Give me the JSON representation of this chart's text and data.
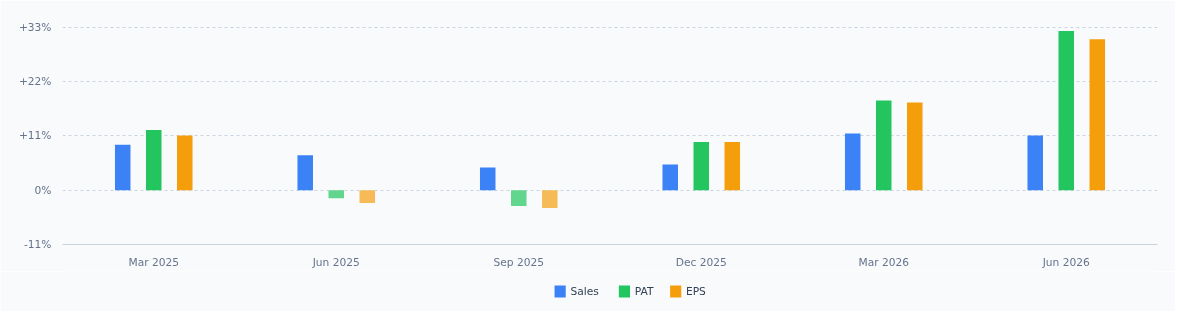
{
  "chart_data": {
    "type": "bar",
    "categories": [
      "Mar 2025",
      "Jun 2025",
      "Sep 2025",
      "Dec 2025",
      "Mar 2026",
      "Jun 2026"
    ],
    "series": [
      {
        "name": "Sales",
        "color": "#3b82f6",
        "colors": [
          "#3b82f6",
          "#3b82f6",
          "#3b82f6",
          "#3b82f6",
          "#3b82f6",
          "#3b82f6"
        ],
        "values": [
          9.2,
          7.1,
          4.6,
          5.2,
          11.5,
          11.1
        ]
      },
      {
        "name": "PAT",
        "color": "#22c55e",
        "colors": [
          "#22c55e",
          "#63d68d",
          "#63d68d",
          "#22c55e",
          "#22c55e",
          "#22c55e"
        ],
        "values": [
          12.2,
          -1.6,
          -3.2,
          9.8,
          18.2,
          32.3
        ]
      },
      {
        "name": "EPS",
        "color": "#f59e0b",
        "colors": [
          "#f59e0b",
          "#f6bb57",
          "#f6bb57",
          "#f59e0b",
          "#f59e0b",
          "#f59e0b"
        ],
        "values": [
          11.1,
          -2.6,
          -3.6,
          9.8,
          17.8,
          30.6
        ]
      }
    ],
    "ylim": [
      -11,
      34
    ],
    "yticks": [
      {
        "value": -11,
        "label": "-11%"
      },
      {
        "value": 0,
        "label": "0%"
      },
      {
        "value": 11,
        "label": "+11%"
      },
      {
        "value": 22,
        "label": "+22%"
      },
      {
        "value": 33,
        "label": "+33%"
      }
    ],
    "grid": "y",
    "legend": "bottom"
  }
}
